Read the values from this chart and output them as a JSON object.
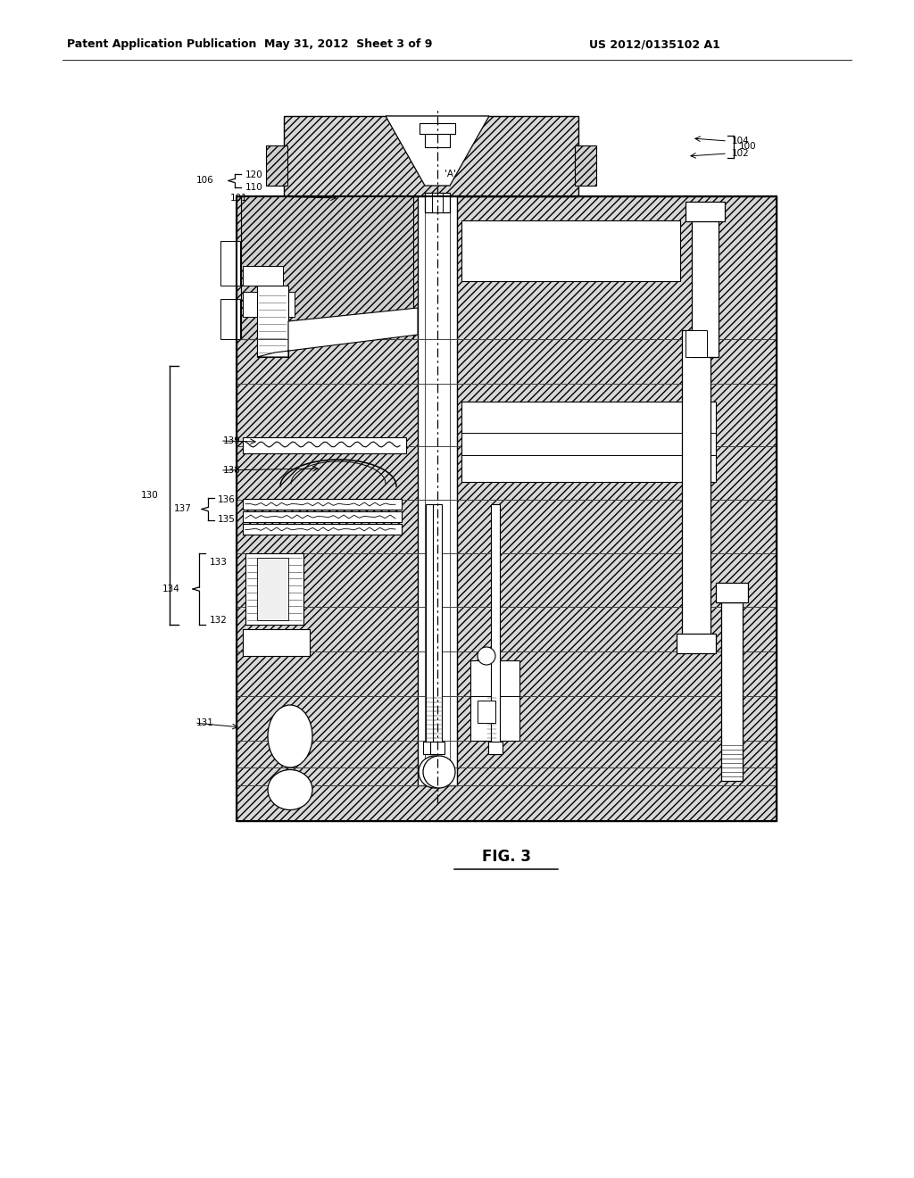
{
  "title_left": "Patent Application Publication",
  "title_center": "May 31, 2012  Sheet 3 of 9",
  "title_right": "US 2012/0135102 A1",
  "fig_label": "FIG. 3",
  "background_color": "#ffffff"
}
